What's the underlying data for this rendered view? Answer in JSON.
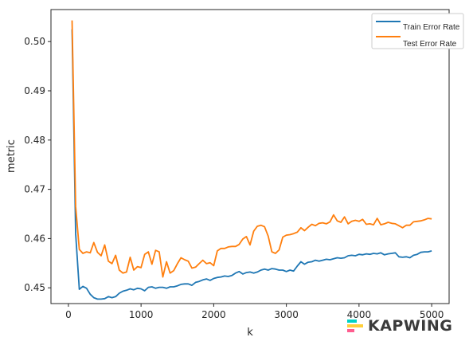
{
  "chart_data": {
    "type": "line",
    "xlabel": "k",
    "ylabel": "metric",
    "xlim": [
      -240,
      5240
    ],
    "ylim": [
      0.4468,
      0.5065
    ],
    "x_ticks": [
      0,
      1000,
      2000,
      3000,
      4000,
      5000
    ],
    "y_ticks": [
      0.45,
      0.46,
      0.47,
      0.48,
      0.49,
      0.5
    ],
    "legend_position": "top-right",
    "grid": false,
    "series": [
      {
        "name": "Train Error Rate",
        "color": "#1f77b4",
        "points": [
          [
            50,
            0.5025
          ],
          [
            100,
            0.461
          ],
          [
            150,
            0.4497
          ],
          [
            200,
            0.4503
          ],
          [
            250,
            0.4499
          ],
          [
            300,
            0.4487
          ],
          [
            350,
            0.448
          ],
          [
            400,
            0.4477
          ],
          [
            450,
            0.4477
          ],
          [
            500,
            0.4478
          ],
          [
            550,
            0.4482
          ],
          [
            600,
            0.448
          ],
          [
            650,
            0.4482
          ],
          [
            700,
            0.4489
          ],
          [
            750,
            0.4493
          ],
          [
            800,
            0.4495
          ],
          [
            850,
            0.4498
          ],
          [
            900,
            0.4496
          ],
          [
            950,
            0.4499
          ],
          [
            1000,
            0.4498
          ],
          [
            1050,
            0.4494
          ],
          [
            1100,
            0.4501
          ],
          [
            1150,
            0.4502
          ],
          [
            1200,
            0.4499
          ],
          [
            1250,
            0.4501
          ],
          [
            1300,
            0.4501
          ],
          [
            1350,
            0.4499
          ],
          [
            1400,
            0.4502
          ],
          [
            1450,
            0.4502
          ],
          [
            1500,
            0.4504
          ],
          [
            1550,
            0.4507
          ],
          [
            1600,
            0.4508
          ],
          [
            1650,
            0.4508
          ],
          [
            1700,
            0.4505
          ],
          [
            1750,
            0.4511
          ],
          [
            1800,
            0.4513
          ],
          [
            1850,
            0.4516
          ],
          [
            1900,
            0.4518
          ],
          [
            1950,
            0.4515
          ],
          [
            2000,
            0.4519
          ],
          [
            2050,
            0.4521
          ],
          [
            2100,
            0.4522
          ],
          [
            2150,
            0.4524
          ],
          [
            2200,
            0.4523
          ],
          [
            2250,
            0.4525
          ],
          [
            2300,
            0.453
          ],
          [
            2350,
            0.4533
          ],
          [
            2400,
            0.4528
          ],
          [
            2450,
            0.4531
          ],
          [
            2500,
            0.4532
          ],
          [
            2550,
            0.453
          ],
          [
            2600,
            0.4532
          ],
          [
            2650,
            0.4536
          ],
          [
            2700,
            0.4538
          ],
          [
            2750,
            0.4536
          ],
          [
            2800,
            0.4539
          ],
          [
            2850,
            0.4538
          ],
          [
            2900,
            0.4536
          ],
          [
            2950,
            0.4536
          ],
          [
            3000,
            0.4533
          ],
          [
            3050,
            0.4536
          ],
          [
            3100,
            0.4534
          ],
          [
            3150,
            0.4544
          ],
          [
            3200,
            0.4553
          ],
          [
            3250,
            0.4548
          ],
          [
            3300,
            0.4552
          ],
          [
            3350,
            0.4553
          ],
          [
            3400,
            0.4556
          ],
          [
            3450,
            0.4554
          ],
          [
            3500,
            0.4556
          ],
          [
            3550,
            0.4558
          ],
          [
            3600,
            0.4557
          ],
          [
            3650,
            0.4559
          ],
          [
            3700,
            0.4561
          ],
          [
            3750,
            0.456
          ],
          [
            3800,
            0.4561
          ],
          [
            3850,
            0.4565
          ],
          [
            3900,
            0.4566
          ],
          [
            3950,
            0.4565
          ],
          [
            4000,
            0.4568
          ],
          [
            4050,
            0.4567
          ],
          [
            4100,
            0.4569
          ],
          [
            4150,
            0.4568
          ],
          [
            4200,
            0.457
          ],
          [
            4250,
            0.4569
          ],
          [
            4300,
            0.4571
          ],
          [
            4350,
            0.4567
          ],
          [
            4400,
            0.4569
          ],
          [
            4450,
            0.457
          ],
          [
            4500,
            0.4571
          ],
          [
            4550,
            0.4563
          ],
          [
            4600,
            0.4562
          ],
          [
            4650,
            0.4563
          ],
          [
            4700,
            0.4561
          ],
          [
            4750,
            0.4566
          ],
          [
            4800,
            0.4568
          ],
          [
            4850,
            0.4572
          ],
          [
            4900,
            0.4573
          ],
          [
            4950,
            0.4573
          ],
          [
            5000,
            0.4575
          ]
        ]
      },
      {
        "name": "Test Error Rate",
        "color": "#ff7f0e",
        "points": [
          [
            50,
            0.5043
          ],
          [
            100,
            0.4665
          ],
          [
            150,
            0.4578
          ],
          [
            200,
            0.457
          ],
          [
            250,
            0.4573
          ],
          [
            300,
            0.4571
          ],
          [
            350,
            0.4592
          ],
          [
            400,
            0.4572
          ],
          [
            450,
            0.4565
          ],
          [
            500,
            0.4587
          ],
          [
            550,
            0.4554
          ],
          [
            600,
            0.4549
          ],
          [
            650,
            0.4566
          ],
          [
            700,
            0.4536
          ],
          [
            750,
            0.453
          ],
          [
            800,
            0.4532
          ],
          [
            850,
            0.4562
          ],
          [
            900,
            0.4536
          ],
          [
            950,
            0.4543
          ],
          [
            1000,
            0.4541
          ],
          [
            1050,
            0.4568
          ],
          [
            1100,
            0.4573
          ],
          [
            1150,
            0.4548
          ],
          [
            1200,
            0.4576
          ],
          [
            1250,
            0.4573
          ],
          [
            1300,
            0.4522
          ],
          [
            1350,
            0.4553
          ],
          [
            1400,
            0.453
          ],
          [
            1450,
            0.4535
          ],
          [
            1500,
            0.4549
          ],
          [
            1550,
            0.4561
          ],
          [
            1600,
            0.4557
          ],
          [
            1650,
            0.4554
          ],
          [
            1700,
            0.454
          ],
          [
            1750,
            0.4542
          ],
          [
            1800,
            0.4549
          ],
          [
            1850,
            0.4556
          ],
          [
            1900,
            0.4549
          ],
          [
            1950,
            0.4551
          ],
          [
            2000,
            0.4545
          ],
          [
            2050,
            0.4575
          ],
          [
            2100,
            0.458
          ],
          [
            2150,
            0.458
          ],
          [
            2200,
            0.4583
          ],
          [
            2250,
            0.4584
          ],
          [
            2300,
            0.4584
          ],
          [
            2350,
            0.4588
          ],
          [
            2400,
            0.4599
          ],
          [
            2450,
            0.4604
          ],
          [
            2500,
            0.4587
          ],
          [
            2550,
            0.4615
          ],
          [
            2600,
            0.4625
          ],
          [
            2650,
            0.4627
          ],
          [
            2700,
            0.4624
          ],
          [
            2750,
            0.4605
          ],
          [
            2800,
            0.4573
          ],
          [
            2850,
            0.457
          ],
          [
            2900,
            0.4577
          ],
          [
            2950,
            0.4603
          ],
          [
            3000,
            0.4607
          ],
          [
            3050,
            0.4608
          ],
          [
            3100,
            0.461
          ],
          [
            3150,
            0.4613
          ],
          [
            3200,
            0.4622
          ],
          [
            3250,
            0.4616
          ],
          [
            3300,
            0.4623
          ],
          [
            3350,
            0.4629
          ],
          [
            3400,
            0.4626
          ],
          [
            3450,
            0.4631
          ],
          [
            3500,
            0.4632
          ],
          [
            3550,
            0.463
          ],
          [
            3600,
            0.4634
          ],
          [
            3650,
            0.4648
          ],
          [
            3700,
            0.4636
          ],
          [
            3750,
            0.4633
          ],
          [
            3800,
            0.4644
          ],
          [
            3850,
            0.463
          ],
          [
            3900,
            0.4635
          ],
          [
            3950,
            0.4637
          ],
          [
            4000,
            0.4635
          ],
          [
            4050,
            0.4639
          ],
          [
            4100,
            0.4629
          ],
          [
            4150,
            0.463
          ],
          [
            4200,
            0.4628
          ],
          [
            4250,
            0.4641
          ],
          [
            4300,
            0.4628
          ],
          [
            4350,
            0.463
          ],
          [
            4400,
            0.4633
          ],
          [
            4450,
            0.4631
          ],
          [
            4500,
            0.463
          ],
          [
            4550,
            0.4626
          ],
          [
            4600,
            0.4622
          ],
          [
            4650,
            0.4627
          ],
          [
            4700,
            0.4627
          ],
          [
            4750,
            0.4634
          ],
          [
            4800,
            0.4635
          ],
          [
            4850,
            0.4636
          ],
          [
            4900,
            0.4638
          ],
          [
            4950,
            0.4641
          ],
          [
            5000,
            0.464
          ]
        ]
      }
    ]
  },
  "watermark": {
    "text": "KAPWING",
    "icon": "kapwing-logo-icon",
    "accent_colors": [
      "#00d2c6",
      "#ffcf3b",
      "#ff5d8f"
    ]
  }
}
